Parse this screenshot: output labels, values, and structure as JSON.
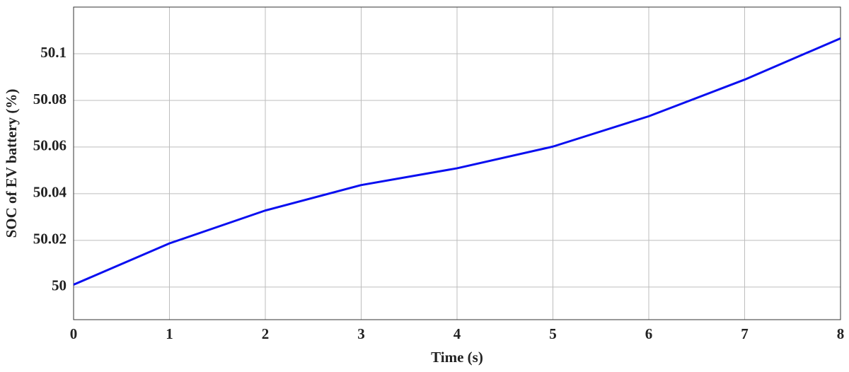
{
  "chart_data": {
    "type": "line",
    "xlabel": "Time (s)",
    "ylabel": "SOC of EV battery (%)",
    "x": [
      0,
      1,
      2,
      3,
      4,
      5,
      6,
      7,
      8
    ],
    "series": [
      {
        "name": "SOC",
        "color": "#0a0ff0",
        "values": [
          50.001,
          50.0187,
          50.0328,
          50.0437,
          50.0509,
          50.0602,
          50.0732,
          50.0889,
          50.1066
        ]
      }
    ],
    "xlim": [
      0,
      8
    ],
    "xticks": [
      0,
      1,
      2,
      3,
      4,
      5,
      6,
      7,
      8
    ],
    "ylim": [
      49.986,
      50.12
    ],
    "yticks": [
      50,
      50.02,
      50.04,
      50.06,
      50.08,
      50.1
    ],
    "grid": true
  }
}
